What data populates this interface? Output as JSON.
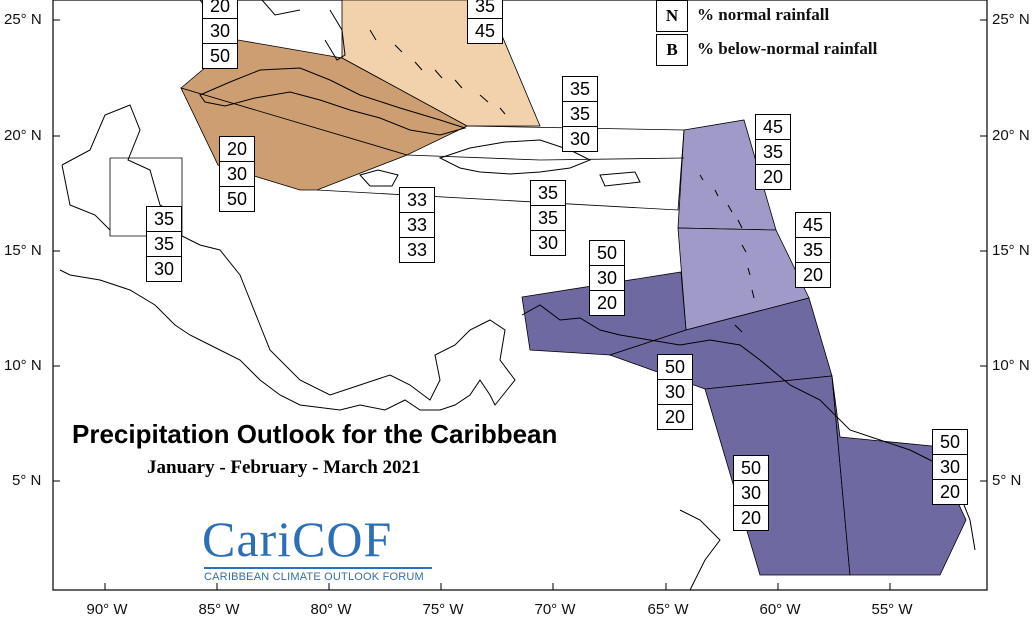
{
  "title": "Precipitation Outlook for the Caribbean",
  "subtitle": "January - February - March 2021",
  "logo": {
    "wordmark": "CariCOF",
    "tagline": "CARIBBEAN CLIMATE OUTLOOK FORUM"
  },
  "legend": [
    {
      "key": "N",
      "text": "% normal rainfall"
    },
    {
      "key": "B",
      "text": "% below-normal rainfall"
    }
  ],
  "axes": {
    "lat_labels": [
      "25° N",
      "20° N",
      "15° N",
      "10° N",
      "5° N"
    ],
    "lon_labels": [
      "90° W",
      "85° W",
      "80° W",
      "75° W",
      "70° W",
      "65° W",
      "60° W",
      "55° W"
    ]
  },
  "colors": {
    "brown_dark": "#cc9e72",
    "brown_light": "#f2d2ad",
    "lavender": "#a09ac8",
    "purple": "#6e69a0",
    "logo_blue": "#2c6fb5"
  },
  "regions": [
    {
      "id": "bahamas",
      "color": "brown_light"
    },
    {
      "id": "cuba",
      "color": "brown_dark"
    },
    {
      "id": "cayman-jamaica",
      "color": "brown_dark"
    },
    {
      "id": "leeward-islands",
      "color": "lavender"
    },
    {
      "id": "windward-islands",
      "color": "lavender"
    },
    {
      "id": "northern-south-america",
      "color": "purple"
    },
    {
      "id": "trinidad-venezuela",
      "color": "purple"
    },
    {
      "id": "guyana",
      "color": "purple"
    },
    {
      "id": "suriname-french-guiana",
      "color": "purple"
    }
  ],
  "probability_boxes": [
    {
      "id": "top-left",
      "values": [
        "20",
        "30",
        "50"
      ]
    },
    {
      "id": "bahamas",
      "values": [
        "35",
        "45"
      ]
    },
    {
      "id": "turks-caicos",
      "values": [
        "35",
        "35",
        "30"
      ]
    },
    {
      "id": "cuba",
      "values": [
        "20",
        "30",
        "50"
      ]
    },
    {
      "id": "belize",
      "values": [
        "35",
        "35",
        "30"
      ]
    },
    {
      "id": "jamaica",
      "values": [
        "33",
        "33",
        "33"
      ]
    },
    {
      "id": "hispaniola",
      "values": [
        "35",
        "35",
        "30"
      ]
    },
    {
      "id": "leeward",
      "values": [
        "45",
        "35",
        "20"
      ]
    },
    {
      "id": "windward",
      "values": [
        "45",
        "35",
        "20"
      ]
    },
    {
      "id": "abc-islands",
      "values": [
        "50",
        "30",
        "20"
      ]
    },
    {
      "id": "trinidad",
      "values": [
        "50",
        "30",
        "20"
      ]
    },
    {
      "id": "guyana",
      "values": [
        "50",
        "30",
        "20"
      ]
    },
    {
      "id": "suriname",
      "values": [
        "50",
        "30",
        "20"
      ]
    }
  ]
}
